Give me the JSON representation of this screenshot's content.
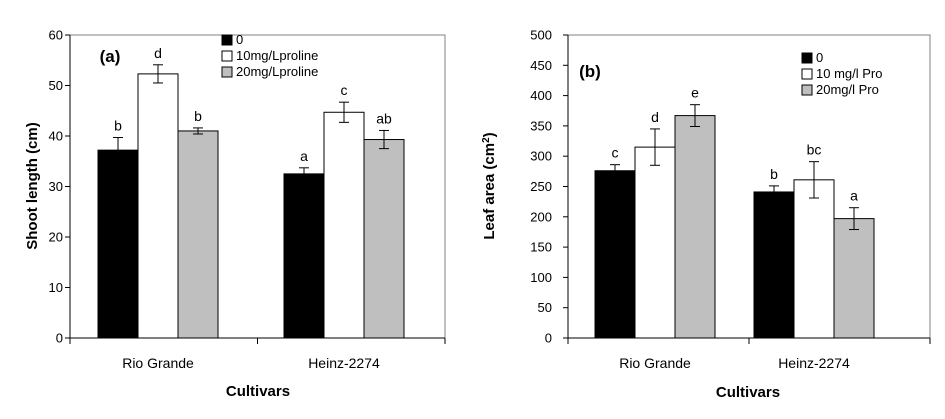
{
  "chart_data": [
    {
      "type": "bar",
      "panel_label": "(a)",
      "xlabel": "Cultivars",
      "ylabel": "Shoot length (cm)",
      "ylim": [
        0,
        60
      ],
      "yticks": [
        0,
        10,
        20,
        30,
        40,
        50,
        60
      ],
      "categories": [
        "Rio Grande",
        "Heinz-2274"
      ],
      "series": [
        {
          "name": "0",
          "color": "#000000",
          "values": [
            37.2,
            32.5
          ],
          "errors": [
            2.5,
            1.2
          ],
          "labels": [
            "b",
            "a"
          ]
        },
        {
          "name": "10mg/Lproline",
          "color": "#ffffff",
          "values": [
            52.3,
            44.7
          ],
          "errors": [
            1.8,
            2.0
          ],
          "labels": [
            "d",
            "c"
          ]
        },
        {
          "name": "20mg/Lproline",
          "color": "#bfbfbf",
          "values": [
            41.0,
            39.3
          ],
          "errors": [
            0.6,
            1.8
          ],
          "labels": [
            "b",
            "ab"
          ]
        }
      ],
      "legend_position": "top-center",
      "grid": false
    },
    {
      "type": "bar",
      "panel_label": "(b)",
      "xlabel": "Cultivars",
      "ylabel": "Leaf area (cm",
      "ylabel_sup": "2",
      "ylabel_end": ")",
      "ylim": [
        0,
        500
      ],
      "yticks": [
        0,
        50,
        100,
        150,
        200,
        250,
        300,
        350,
        400,
        450,
        500
      ],
      "categories": [
        "Rio Grande",
        "Heinz-2274"
      ],
      "series": [
        {
          "name": "0",
          "color": "#000000",
          "values": [
            276,
            241
          ],
          "errors": [
            10,
            10
          ],
          "labels": [
            "c",
            "b"
          ]
        },
        {
          "name": "10 mg/l Pro",
          "color": "#ffffff",
          "values": [
            315,
            261
          ],
          "errors": [
            30,
            30
          ],
          "labels": [
            "d",
            "bc"
          ]
        },
        {
          "name": "20mg/l Pro",
          "color": "#bfbfbf",
          "values": [
            367,
            197
          ],
          "errors": [
            18,
            18
          ],
          "labels": [
            "e",
            "a"
          ]
        }
      ],
      "legend_position": "top-right",
      "grid": false
    }
  ]
}
